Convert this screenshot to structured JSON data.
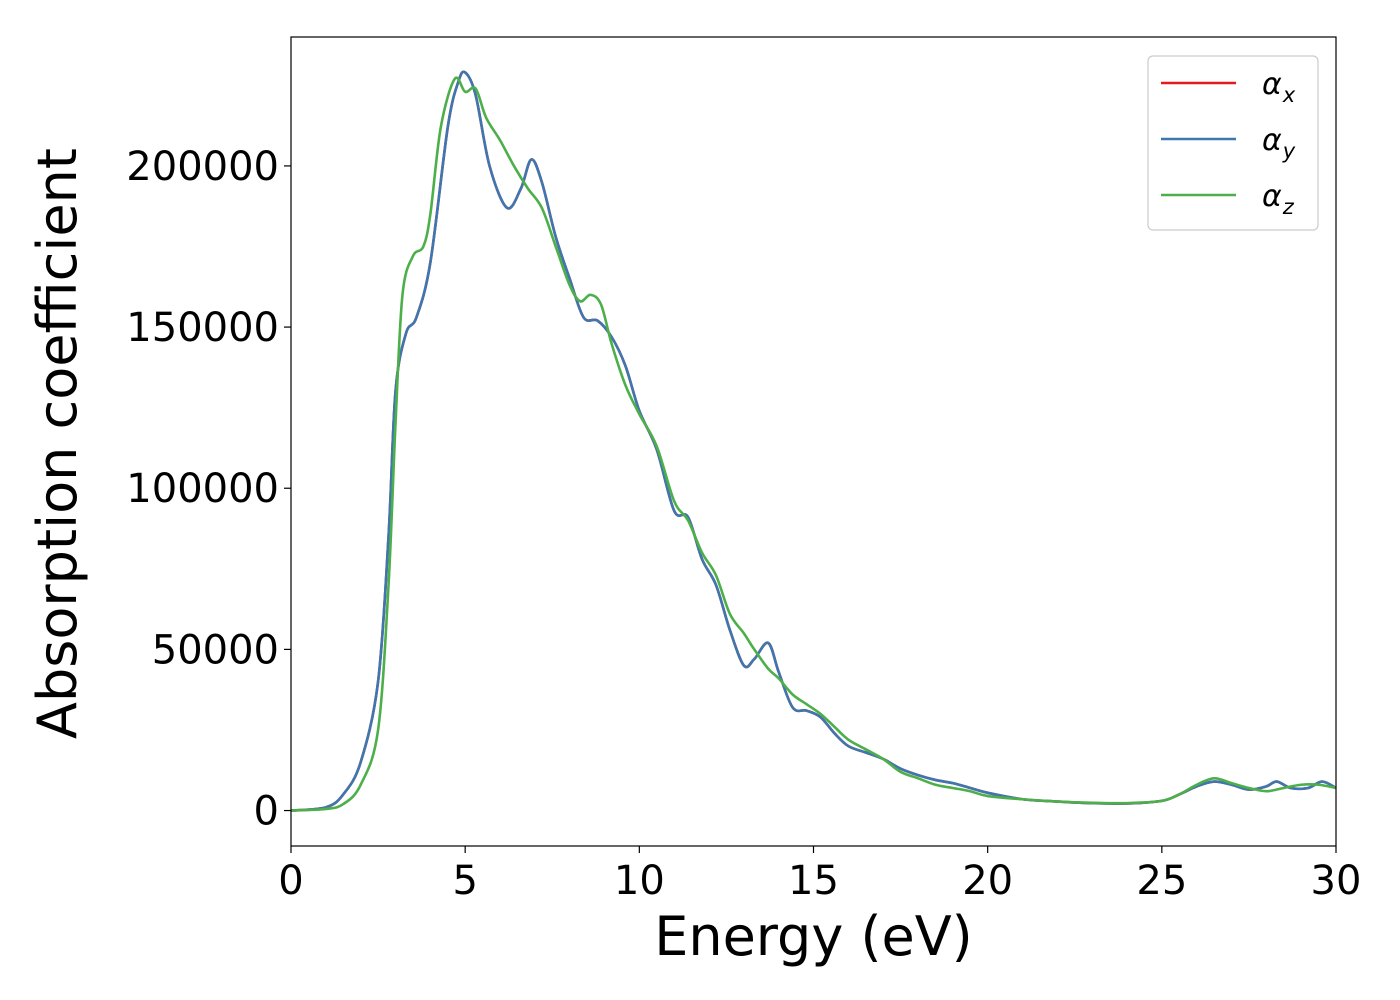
{
  "chart_data": {
    "type": "line",
    "title": "",
    "xlabel": "Energy (eV)",
    "ylabel": "Absorption coefficient",
    "xlim": [
      0,
      30
    ],
    "ylim": [
      -11000,
      240000
    ],
    "xticks": [
      0,
      5,
      10,
      15,
      20,
      25,
      30
    ],
    "yticks": [
      0,
      50000,
      100000,
      150000,
      200000
    ],
    "grid": false,
    "legend_position": "top-right",
    "series": [
      {
        "name": "α",
        "subscript": "x",
        "color": "#e41a1c",
        "x": [
          0,
          1,
          1.5,
          2,
          2.5,
          2.8,
          3,
          3.3,
          3.6,
          4,
          4.5,
          4.8,
          5,
          5.3,
          5.7,
          6.2,
          6.6,
          6.9,
          7.2,
          7.6,
          8,
          8.4,
          8.8,
          9.2,
          9.6,
          10,
          10.5,
          11,
          11.4,
          11.8,
          12.2,
          12.6,
          13,
          13.3,
          13.7,
          14,
          14.4,
          14.8,
          15.2,
          15.6,
          16,
          16.5,
          17,
          17.5,
          18,
          18.5,
          19,
          19.5,
          20,
          21,
          22,
          23,
          24,
          25,
          25.5,
          26,
          26.5,
          27,
          27.5,
          28,
          28.3,
          28.7,
          29.2,
          29.6,
          30
        ],
        "y": [
          0,
          1000,
          5000,
          15000,
          40000,
          85000,
          130000,
          148000,
          153000,
          170000,
          212000,
          226000,
          229000,
          222000,
          200000,
          187000,
          193000,
          202000,
          195000,
          178000,
          165000,
          153000,
          152000,
          147000,
          138000,
          124000,
          112000,
          93000,
          91000,
          78000,
          70000,
          56000,
          45000,
          47000,
          52000,
          43000,
          32000,
          31000,
          29000,
          24000,
          20000,
          18000,
          16000,
          13000,
          11000,
          9500,
          8500,
          7000,
          5500,
          3500,
          2800,
          2300,
          2200,
          3000,
          5000,
          7500,
          9000,
          8000,
          6500,
          7500,
          9000,
          7000,
          7000,
          9000,
          7000
        ]
      },
      {
        "name": "α",
        "subscript": "y",
        "color": "#3d77b0",
        "x": [
          0,
          1,
          1.5,
          2,
          2.5,
          2.8,
          3,
          3.3,
          3.6,
          4,
          4.5,
          4.8,
          5,
          5.3,
          5.7,
          6.2,
          6.6,
          6.9,
          7.2,
          7.6,
          8,
          8.4,
          8.8,
          9.2,
          9.6,
          10,
          10.5,
          11,
          11.4,
          11.8,
          12.2,
          12.6,
          13,
          13.3,
          13.7,
          14,
          14.4,
          14.8,
          15.2,
          15.6,
          16,
          16.5,
          17,
          17.5,
          18,
          18.5,
          19,
          19.5,
          20,
          21,
          22,
          23,
          24,
          25,
          25.5,
          26,
          26.5,
          27,
          27.5,
          28,
          28.3,
          28.7,
          29.2,
          29.6,
          30
        ],
        "y": [
          0,
          1000,
          5000,
          15000,
          40000,
          85000,
          130000,
          148000,
          153000,
          170000,
          212000,
          226000,
          229000,
          222000,
          200000,
          187000,
          193000,
          202000,
          195000,
          178000,
          165000,
          153000,
          152000,
          147000,
          138000,
          124000,
          112000,
          93000,
          91000,
          78000,
          70000,
          56000,
          45000,
          47000,
          52000,
          43000,
          32000,
          31000,
          29000,
          24000,
          20000,
          18000,
          16000,
          13000,
          11000,
          9500,
          8500,
          7000,
          5500,
          3500,
          2800,
          2300,
          2200,
          3000,
          5000,
          7500,
          9000,
          8000,
          6500,
          7500,
          9000,
          7000,
          7000,
          9000,
          7000
        ]
      },
      {
        "name": "α",
        "subscript": "z",
        "color": "#4daf4a",
        "x": [
          0,
          1,
          1.5,
          2,
          2.5,
          2.8,
          3,
          3.2,
          3.5,
          3.8,
          4,
          4.3,
          4.7,
          5,
          5.3,
          5.6,
          6,
          6.4,
          6.8,
          7.2,
          7.6,
          8,
          8.3,
          8.6,
          8.9,
          9.2,
          9.6,
          10,
          10.5,
          11,
          11.4,
          11.8,
          12.2,
          12.6,
          13,
          13.3,
          13.7,
          14,
          14.4,
          14.8,
          15.2,
          15.6,
          16,
          16.5,
          17,
          17.5,
          18,
          18.5,
          19,
          19.5,
          20,
          21,
          22,
          23,
          24,
          25,
          25.5,
          26,
          26.5,
          27,
          27.5,
          28,
          28.5,
          29,
          29.5,
          30
        ],
        "y": [
          0,
          500,
          2000,
          8000,
          25000,
          70000,
          120000,
          160000,
          172000,
          175000,
          185000,
          212000,
          227000,
          223000,
          224000,
          215000,
          208000,
          200000,
          193000,
          187000,
          175000,
          163000,
          158000,
          160000,
          157000,
          145000,
          132000,
          123000,
          113000,
          96000,
          90000,
          80000,
          73000,
          61000,
          55000,
          50000,
          44000,
          41000,
          36000,
          33000,
          30000,
          26000,
          22000,
          19000,
          16000,
          12000,
          10000,
          8000,
          7000,
          6000,
          4500,
          3500,
          2800,
          2400,
          2300,
          3000,
          5000,
          8000,
          10000,
          8500,
          7000,
          6000,
          7000,
          8000,
          8000,
          7000
        ]
      }
    ]
  }
}
